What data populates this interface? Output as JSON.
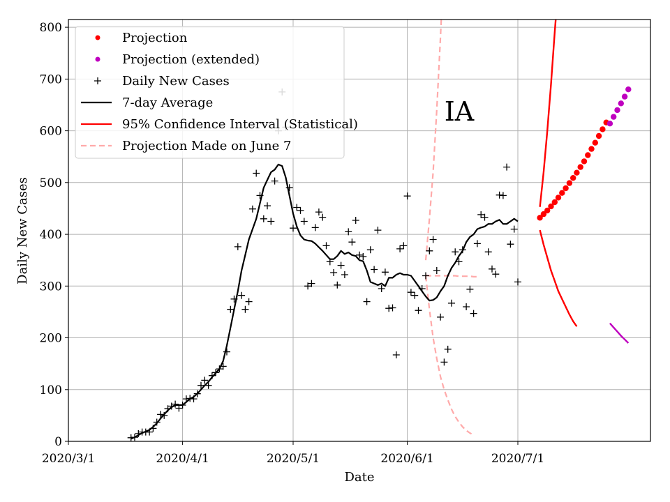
{
  "chart_data": {
    "type": "line",
    "annotation": "IA",
    "xlabel": "Date",
    "ylabel": "Daily New Cases",
    "x_tick_labels": [
      "2020/3/1",
      "2020/4/1",
      "2020/5/1",
      "2020/6/1",
      "2020/7/1"
    ],
    "x_tick_days": [
      0,
      31,
      61,
      92,
      122
    ],
    "y_ticks": [
      0,
      100,
      200,
      300,
      400,
      500,
      600,
      700,
      800
    ],
    "xlim_days": [
      0,
      158
    ],
    "ylim": [
      0,
      815
    ],
    "grid": true,
    "legend_position": "top-left",
    "legend": [
      {
        "key": "projection",
        "label": "Projection",
        "color": "#ff0000",
        "marker": "dot"
      },
      {
        "key": "projection_ext",
        "label": "Projection (extended)",
        "color": "#bf00bf",
        "marker": "dot"
      },
      {
        "key": "daily",
        "label": "Daily New Cases",
        "color": "#000000",
        "marker": "plus"
      },
      {
        "key": "avg",
        "label": "7-day Average",
        "color": "#000000",
        "marker": "line"
      },
      {
        "key": "ci",
        "label": "95% Confidence Interval (Statistical)",
        "color": "#ff0000",
        "marker": "line"
      },
      {
        "key": "june7",
        "label": "Projection Made on June 7",
        "color": "#ffaaaa",
        "marker": "dash"
      }
    ],
    "daily_new_cases": {
      "start_day": 17,
      "values": [
        7,
        8,
        15,
        18,
        18,
        18,
        25,
        37,
        52,
        50,
        63,
        68,
        72,
        64,
        70,
        82,
        83,
        82,
        92,
        108,
        118,
        108,
        127,
        133,
        140,
        145,
        173,
        255,
        275,
        376,
        282,
        255,
        270,
        449,
        518,
        475,
        430,
        455,
        425,
        503,
        600,
        675,
        607,
        490,
        412,
        452,
        446,
        425,
        300,
        305,
        413,
        443,
        433,
        378,
        347,
        326,
        302,
        340,
        322,
        405,
        385,
        427,
        360,
        357,
        270,
        370,
        332,
        408,
        295,
        327,
        257,
        258,
        167,
        372,
        378,
        474,
        288,
        282,
        253,
        295,
        320,
        368,
        390,
        330,
        240,
        153,
        178,
        267,
        366,
        347,
        370,
        260,
        294,
        247,
        382,
        438,
        433,
        366,
        333,
        323,
        476,
        475,
        530,
        381,
        410,
        308
      ]
    },
    "seven_day_average": {
      "start_day": 17,
      "values": [
        5,
        8,
        12,
        16,
        19,
        22,
        28,
        35,
        44,
        52,
        60,
        66,
        70,
        70,
        70,
        76,
        82,
        86,
        92,
        100,
        108,
        115,
        124,
        132,
        140,
        155,
        185,
        220,
        255,
        290,
        330,
        360,
        390,
        410,
        430,
        460,
        490,
        505,
        520,
        525,
        535,
        532,
        510,
        475,
        440,
        415,
        398,
        390,
        388,
        387,
        382,
        375,
        368,
        360,
        352,
        352,
        358,
        368,
        362,
        365,
        360,
        358,
        350,
        348,
        330,
        308,
        305,
        302,
        305,
        300,
        316,
        316,
        322,
        325,
        322,
        322,
        320,
        310,
        300,
        290,
        280,
        272,
        273,
        278,
        290,
        300,
        320,
        335,
        345,
        358,
        368,
        385,
        395,
        400,
        410,
        413,
        415,
        420,
        420,
        425,
        428,
        420,
        420,
        425,
        430,
        425
      ]
    },
    "projection": {
      "start_day": 128,
      "values": [
        432,
        439,
        446,
        454,
        462,
        471,
        480,
        489,
        499,
        509,
        519,
        530,
        541,
        553,
        565,
        577,
        590,
        603,
        616
      ]
    },
    "projection_extended": {
      "start_day": 147,
      "values": [
        614,
        627,
        640,
        653,
        666,
        680
      ]
    },
    "ci_upper": {
      "start_day": 128,
      "values": [
        453,
        520,
        600,
        690,
        790,
        880,
        970
      ]
    },
    "ci_lower": {
      "start_day": 128,
      "values": [
        408,
        380,
        355,
        330,
        310,
        290,
        275,
        260,
        245,
        232,
        222
      ]
    },
    "ci_lower_extended": {
      "start_day": 147,
      "values": [
        228,
        220,
        212,
        204,
        197,
        190
      ]
    },
    "june7_upper": {
      "start_day": 97,
      "values": [
        350,
        430,
        520,
        640,
        780,
        940
      ]
    },
    "june7_center": {
      "start_day": 97,
      "values": [
        321,
        320,
        320,
        320,
        320,
        320,
        320,
        320,
        320,
        319,
        319,
        319,
        319,
        318,
        318
      ]
    },
    "june7_lower": {
      "start_day": 97,
      "values": [
        320,
        255,
        200,
        160,
        125,
        100,
        80,
        62,
        48,
        37,
        28,
        21,
        16,
        12
      ]
    }
  }
}
